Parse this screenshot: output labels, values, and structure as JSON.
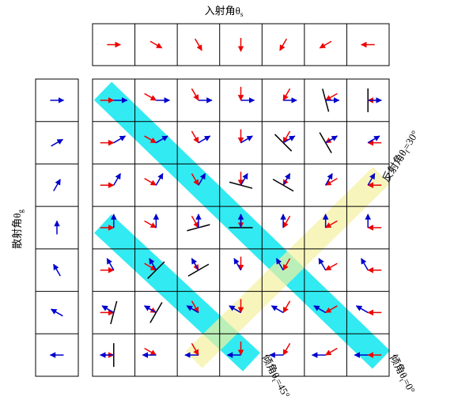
{
  "header": {
    "title": {
      "text": "入射角θ",
      "sub": "s"
    }
  },
  "side": {
    "label": {
      "text": "散射角θ",
      "sub": "g"
    }
  },
  "incident_angles_deg": [
    0,
    -30,
    -60,
    -90,
    -120,
    -150,
    -180
  ],
  "scatter_angles_deg": [
    0,
    30,
    60,
    90,
    120,
    150,
    180
  ],
  "annotations": [
    {
      "text": "反射角θ",
      "sub": "f",
      "rest": "=30°"
    },
    {
      "text": "倾角θ",
      "sub": "t",
      "rest": "=45°"
    },
    {
      "text": "倾角θ",
      "sub": "t",
      "rest": "=0°"
    }
  ]
}
